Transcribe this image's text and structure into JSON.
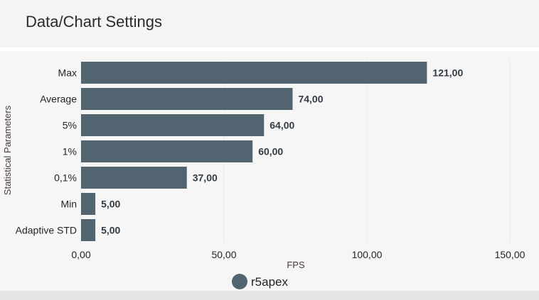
{
  "header": {
    "title": "Data/Chart Settings"
  },
  "chart_data": {
    "type": "bar",
    "orientation": "horizontal",
    "categories": [
      "Max",
      "Average",
      "5%",
      "1%",
      "0,1%",
      "Min",
      "Adaptive STD"
    ],
    "series": [
      {
        "name": "r5apex",
        "values": [
          121,
          74,
          64,
          60,
          37,
          5,
          5
        ]
      }
    ],
    "data_labels": [
      "121,00",
      "74,00",
      "64,00",
      "60,00",
      "37,00",
      "5,00",
      "5,00"
    ],
    "xlabel": "FPS",
    "ylabel": "Statistical Parameters",
    "xlim": [
      0,
      150
    ],
    "xticks": [
      0,
      50,
      100,
      150
    ],
    "xtick_labels": [
      "0,00",
      "50,00",
      "100,00",
      "150,00"
    ],
    "grid": true,
    "legend_position": "bottom-center",
    "bar_color": "#526470"
  }
}
